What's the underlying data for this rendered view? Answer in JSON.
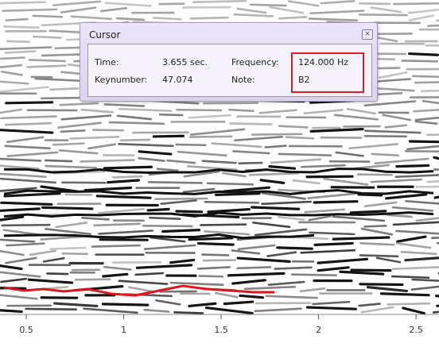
{
  "cursor_panel": {
    "title": "Cursor",
    "fields": [
      {
        "label": "Time:",
        "value": "3.655 sec."
      },
      {
        "label": "Frequency:",
        "value": "124.000 Hz"
      },
      {
        "label": "Keynumber:",
        "value": "47.074"
      },
      {
        "label": "Note:",
        "value": "B2"
      }
    ]
  },
  "x_axis": {
    "range": [
      0.365,
      2.618
    ],
    "ticks": [
      0.5,
      1,
      1.5,
      2,
      2.5
    ]
  }
}
